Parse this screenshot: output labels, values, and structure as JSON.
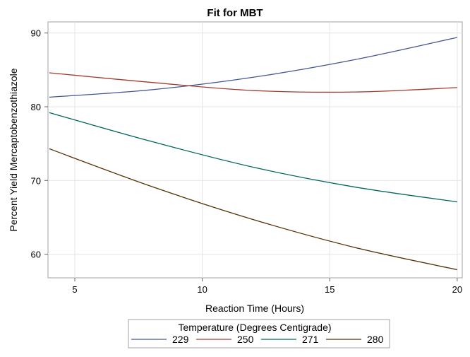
{
  "chart_data": {
    "type": "line",
    "title": "Fit for MBT",
    "xlabel": "Reaction Time (Hours)",
    "ylabel": "Percent Yield Mercaptobenzothiazole",
    "xlim": [
      4,
      20
    ],
    "ylim": [
      56,
      92
    ],
    "xticks": [
      5,
      10,
      15,
      20
    ],
    "yticks": [
      60,
      70,
      80,
      90
    ],
    "grid": true,
    "legend": {
      "title": "Temperature (Degrees Centigrade)",
      "placement": "bottom"
    },
    "x": [
      4,
      8,
      12,
      16,
      20
    ],
    "series": [
      {
        "name": "229",
        "color": "#445694",
        "values": [
          81.3,
          82.3,
          84.0,
          86.4,
          89.4
        ]
      },
      {
        "name": "250",
        "color": "#A23A2E",
        "values": [
          84.6,
          83.3,
          82.2,
          82.0,
          82.6
        ]
      },
      {
        "name": "271",
        "color": "#01665E",
        "values": [
          79.2,
          75.3,
          71.8,
          69.1,
          67.1
        ]
      },
      {
        "name": "280",
        "color": "#543005",
        "values": [
          74.3,
          69.2,
          64.7,
          60.9,
          57.9
        ]
      }
    ]
  }
}
